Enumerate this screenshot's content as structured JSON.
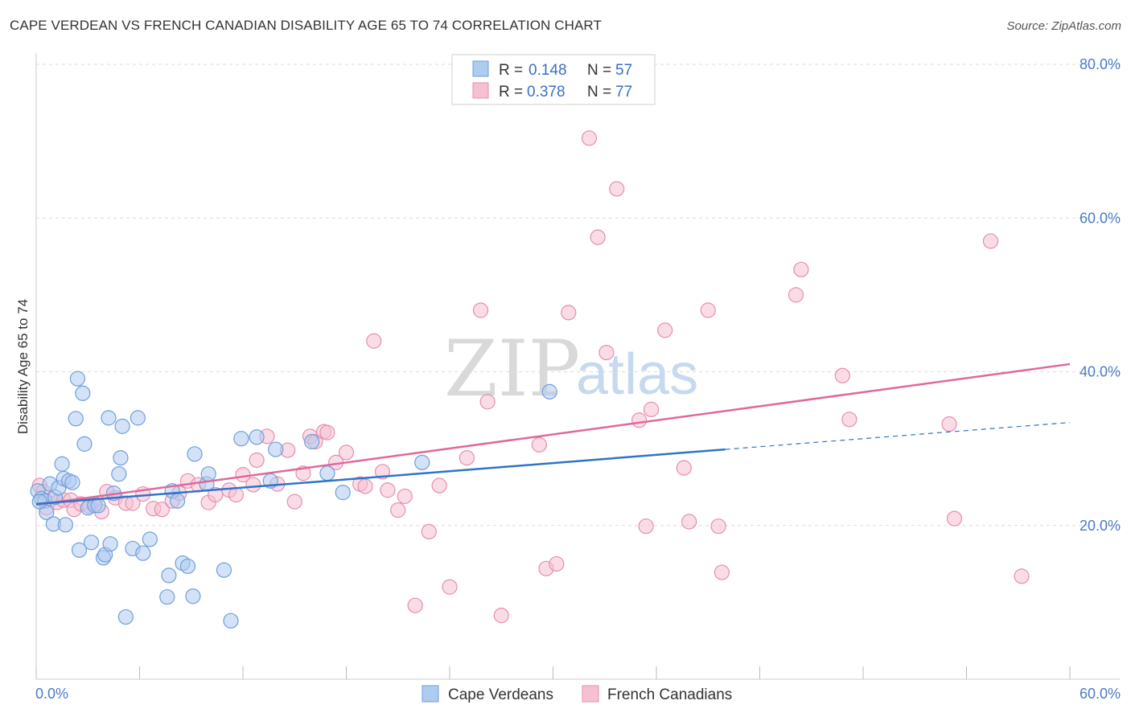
{
  "title": "CAPE VERDEAN VS FRENCH CANADIAN DISABILITY AGE 65 TO 74 CORRELATION CHART",
  "source": "Source: ZipAtlas.com",
  "watermark": {
    "zip": "ZIP",
    "atlas": "atlas"
  },
  "legend": {
    "rows": [
      {
        "r_label": "R =",
        "r_value": "0.148",
        "n_label": "N =",
        "n_value": "57"
      },
      {
        "r_label": "R =",
        "r_value": "0.378",
        "n_label": "N =",
        "n_value": "77"
      }
    ]
  },
  "colors": {
    "blue_fill": "#aecbf0",
    "blue_stroke": "#6f9fdc",
    "blue_line": "#2e74c8",
    "pink_fill": "#f6c0d2",
    "pink_stroke": "#e48fae",
    "pink_line": "#e0689a",
    "grid": "#dcdcdc",
    "tick_text": "#4a7cc4"
  },
  "chart_data": {
    "type": "scatter",
    "title": "CAPE VERDEAN VS FRENCH CANADIAN DISABILITY AGE 65 TO 74 CORRELATION CHART",
    "xlabel": "",
    "ylabel": "Disability Age 65 to 74",
    "xlim": [
      0,
      60
    ],
    "ylim": [
      0,
      80
    ],
    "x_tick_labels": [
      "0.0%",
      "60.0%"
    ],
    "y_tick_labels": [
      "20.0%",
      "40.0%",
      "60.0%",
      "80.0%"
    ],
    "y_ticks": [
      20,
      40,
      60,
      80
    ],
    "grid": true,
    "legend_position": "top-center",
    "series": [
      {
        "name": "Cape Verdeans",
        "r": 0.148,
        "n": 57,
        "trend": {
          "x0": 0,
          "y0": 22.8,
          "x1": 40,
          "y1": 29.9,
          "x_dash_end": 60,
          "y_dash_end": 33.4
        },
        "points": [
          [
            0.1,
            24.5
          ],
          [
            0.3,
            23.5
          ],
          [
            0.5,
            23.2
          ],
          [
            0.6,
            21.7
          ],
          [
            0.8,
            25.4
          ],
          [
            1.0,
            20.2
          ],
          [
            1.1,
            23.7
          ],
          [
            1.3,
            24.9
          ],
          [
            1.5,
            28.0
          ],
          [
            1.6,
            26.1
          ],
          [
            1.7,
            20.1
          ],
          [
            1.9,
            25.8
          ],
          [
            2.1,
            25.6
          ],
          [
            2.3,
            33.9
          ],
          [
            2.4,
            39.1
          ],
          [
            2.5,
            16.8
          ],
          [
            2.7,
            37.2
          ],
          [
            2.8,
            30.6
          ],
          [
            3.0,
            22.3
          ],
          [
            3.2,
            17.8
          ],
          [
            3.4,
            22.6
          ],
          [
            3.6,
            22.6
          ],
          [
            3.9,
            15.8
          ],
          [
            4.0,
            16.2
          ],
          [
            4.2,
            34.0
          ],
          [
            4.3,
            17.6
          ],
          [
            4.5,
            24.2
          ],
          [
            4.8,
            26.7
          ],
          [
            4.9,
            28.8
          ],
          [
            5.0,
            32.9
          ],
          [
            5.2,
            8.1
          ],
          [
            5.6,
            17.0
          ],
          [
            5.9,
            34.0
          ],
          [
            6.2,
            16.4
          ],
          [
            6.6,
            18.2
          ],
          [
            7.6,
            10.7
          ],
          [
            7.7,
            13.5
          ],
          [
            7.9,
            24.5
          ],
          [
            8.2,
            23.2
          ],
          [
            8.5,
            15.1
          ],
          [
            8.8,
            14.7
          ],
          [
            9.1,
            10.8
          ],
          [
            9.2,
            29.3
          ],
          [
            9.9,
            25.4
          ],
          [
            10.0,
            26.7
          ],
          [
            10.9,
            14.2
          ],
          [
            11.3,
            7.6
          ],
          [
            11.9,
            31.3
          ],
          [
            12.8,
            31.5
          ],
          [
            13.6,
            25.8
          ],
          [
            13.9,
            29.9
          ],
          [
            16.0,
            30.9
          ],
          [
            16.9,
            26.8
          ],
          [
            17.8,
            24.3
          ],
          [
            22.4,
            28.2
          ],
          [
            29.8,
            37.4
          ],
          [
            0.2,
            23.1
          ]
        ]
      },
      {
        "name": "French Canadians",
        "r": 0.378,
        "n": 77,
        "trend": {
          "x0": 0,
          "y0": 22.7,
          "x1": 60,
          "y1": 41.0
        },
        "points": [
          [
            0.2,
            25.2
          ],
          [
            0.4,
            24.4
          ],
          [
            0.6,
            22.3
          ],
          [
            0.9,
            23.4
          ],
          [
            1.2,
            23.0
          ],
          [
            1.6,
            23.3
          ],
          [
            2.0,
            23.3
          ],
          [
            2.2,
            22.1
          ],
          [
            2.6,
            22.8
          ],
          [
            3.1,
            22.5
          ],
          [
            3.4,
            22.8
          ],
          [
            3.8,
            21.8
          ],
          [
            4.1,
            24.4
          ],
          [
            4.6,
            23.6
          ],
          [
            5.2,
            22.9
          ],
          [
            5.6,
            22.9
          ],
          [
            6.2,
            24.1
          ],
          [
            6.8,
            22.2
          ],
          [
            7.3,
            22.1
          ],
          [
            7.9,
            23.2
          ],
          [
            8.3,
            24.2
          ],
          [
            8.8,
            25.8
          ],
          [
            9.4,
            25.3
          ],
          [
            10.0,
            23.0
          ],
          [
            10.4,
            24.0
          ],
          [
            11.2,
            24.6
          ],
          [
            11.6,
            24.0
          ],
          [
            12.0,
            26.6
          ],
          [
            12.6,
            25.3
          ],
          [
            12.8,
            28.5
          ],
          [
            13.4,
            31.6
          ],
          [
            14.0,
            25.4
          ],
          [
            14.6,
            29.8
          ],
          [
            15.0,
            23.1
          ],
          [
            15.5,
            26.8
          ],
          [
            15.9,
            31.6
          ],
          [
            16.2,
            30.9
          ],
          [
            16.7,
            32.2
          ],
          [
            16.9,
            32.1
          ],
          [
            17.4,
            28.2
          ],
          [
            18.0,
            29.5
          ],
          [
            18.8,
            25.4
          ],
          [
            19.1,
            25.1
          ],
          [
            19.6,
            44.0
          ],
          [
            20.1,
            27.0
          ],
          [
            20.4,
            24.6
          ],
          [
            21.0,
            22.0
          ],
          [
            21.4,
            23.8
          ],
          [
            22.0,
            9.6
          ],
          [
            22.8,
            19.2
          ],
          [
            23.4,
            25.2
          ],
          [
            24.0,
            12.0
          ],
          [
            25.0,
            28.8
          ],
          [
            25.8,
            48.0
          ],
          [
            26.2,
            36.1
          ],
          [
            27.0,
            8.3
          ],
          [
            29.2,
            30.5
          ],
          [
            29.6,
            14.4
          ],
          [
            30.2,
            15.0
          ],
          [
            30.9,
            47.7
          ],
          [
            32.1,
            70.4
          ],
          [
            32.6,
            57.5
          ],
          [
            33.1,
            42.5
          ],
          [
            33.7,
            63.8
          ],
          [
            35.0,
            33.7
          ],
          [
            35.4,
            19.9
          ],
          [
            35.7,
            35.1
          ],
          [
            36.5,
            45.4
          ],
          [
            37.6,
            27.5
          ],
          [
            37.9,
            20.5
          ],
          [
            39.0,
            48.0
          ],
          [
            39.6,
            19.9
          ],
          [
            39.8,
            13.9
          ],
          [
            44.1,
            50.0
          ],
          [
            44.4,
            53.3
          ],
          [
            46.8,
            39.5
          ],
          [
            47.2,
            33.8
          ]
        ]
      }
    ],
    "extra_pink_points": [
      [
        53.0,
        33.2
      ],
      [
        53.3,
        20.9
      ],
      [
        55.4,
        57.0
      ],
      [
        57.2,
        13.4
      ]
    ]
  },
  "bottom_legend": [
    {
      "label": "Cape Verdeans"
    },
    {
      "label": "French Canadians"
    }
  ]
}
